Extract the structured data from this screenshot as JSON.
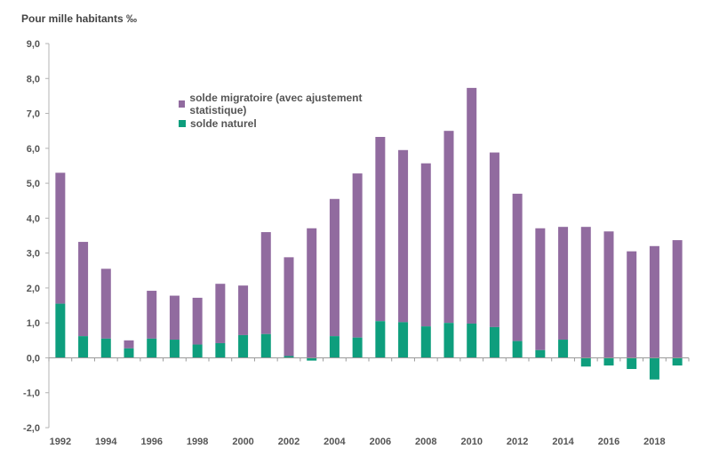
{
  "chart_data": {
    "type": "bar",
    "stacked": true,
    "ylabel": "Pour mille habitants ‰",
    "ylim": [
      -2.0,
      9.0
    ],
    "yticks": [
      "-2,0",
      "-1,0",
      "0,0",
      "1,0",
      "2,0",
      "3,0",
      "4,0",
      "5,0",
      "6,0",
      "7,0",
      "8,0",
      "9,0"
    ],
    "yticks_values": [
      -2,
      -1,
      0,
      1,
      2,
      3,
      4,
      5,
      6,
      7,
      8,
      9
    ],
    "categories": [
      "1992",
      "1993",
      "1994",
      "1995",
      "1996",
      "1997",
      "1998",
      "1999",
      "2000",
      "2001",
      "2002",
      "2003",
      "2004",
      "2005",
      "2006",
      "2007",
      "2008",
      "2009",
      "2010",
      "2011",
      "2012",
      "2013",
      "2014",
      "2015",
      "2016",
      "2017",
      "2018",
      "2019"
    ],
    "xtick_labels": [
      "1992",
      "",
      "1994",
      "",
      "1996",
      "",
      "1998",
      "",
      "2000",
      "",
      "2002",
      "",
      "2004",
      "",
      "2006",
      "",
      "2008",
      "",
      "2010",
      "",
      "2012",
      "",
      "2014",
      "",
      "2016",
      "",
      "2018",
      ""
    ],
    "grid": false,
    "legend_position": "top-left",
    "series": [
      {
        "name": "solde naturel",
        "color": "#0e9e7d",
        "values": [
          1.55,
          0.62,
          0.55,
          0.27,
          0.55,
          0.52,
          0.38,
          0.42,
          0.65,
          0.68,
          0.05,
          -0.08,
          0.62,
          0.58,
          1.05,
          1.02,
          0.9,
          1.0,
          0.98,
          0.88,
          0.48,
          0.22,
          0.52,
          -0.25,
          -0.22,
          -0.32,
          -0.62,
          -0.22
        ]
      },
      {
        "name": "solde migratoire (avec ajustement statistique)",
        "color": "#916b9f",
        "values": [
          3.75,
          2.7,
          2.0,
          0.23,
          1.37,
          1.26,
          1.34,
          1.7,
          1.42,
          2.92,
          2.83,
          3.71,
          3.93,
          4.7,
          5.33,
          4.93,
          4.67,
          5.5,
          6.75,
          5.0,
          4.22,
          3.49,
          3.23,
          3.75,
          3.62,
          3.05,
          3.2,
          3.37
        ]
      }
    ]
  }
}
